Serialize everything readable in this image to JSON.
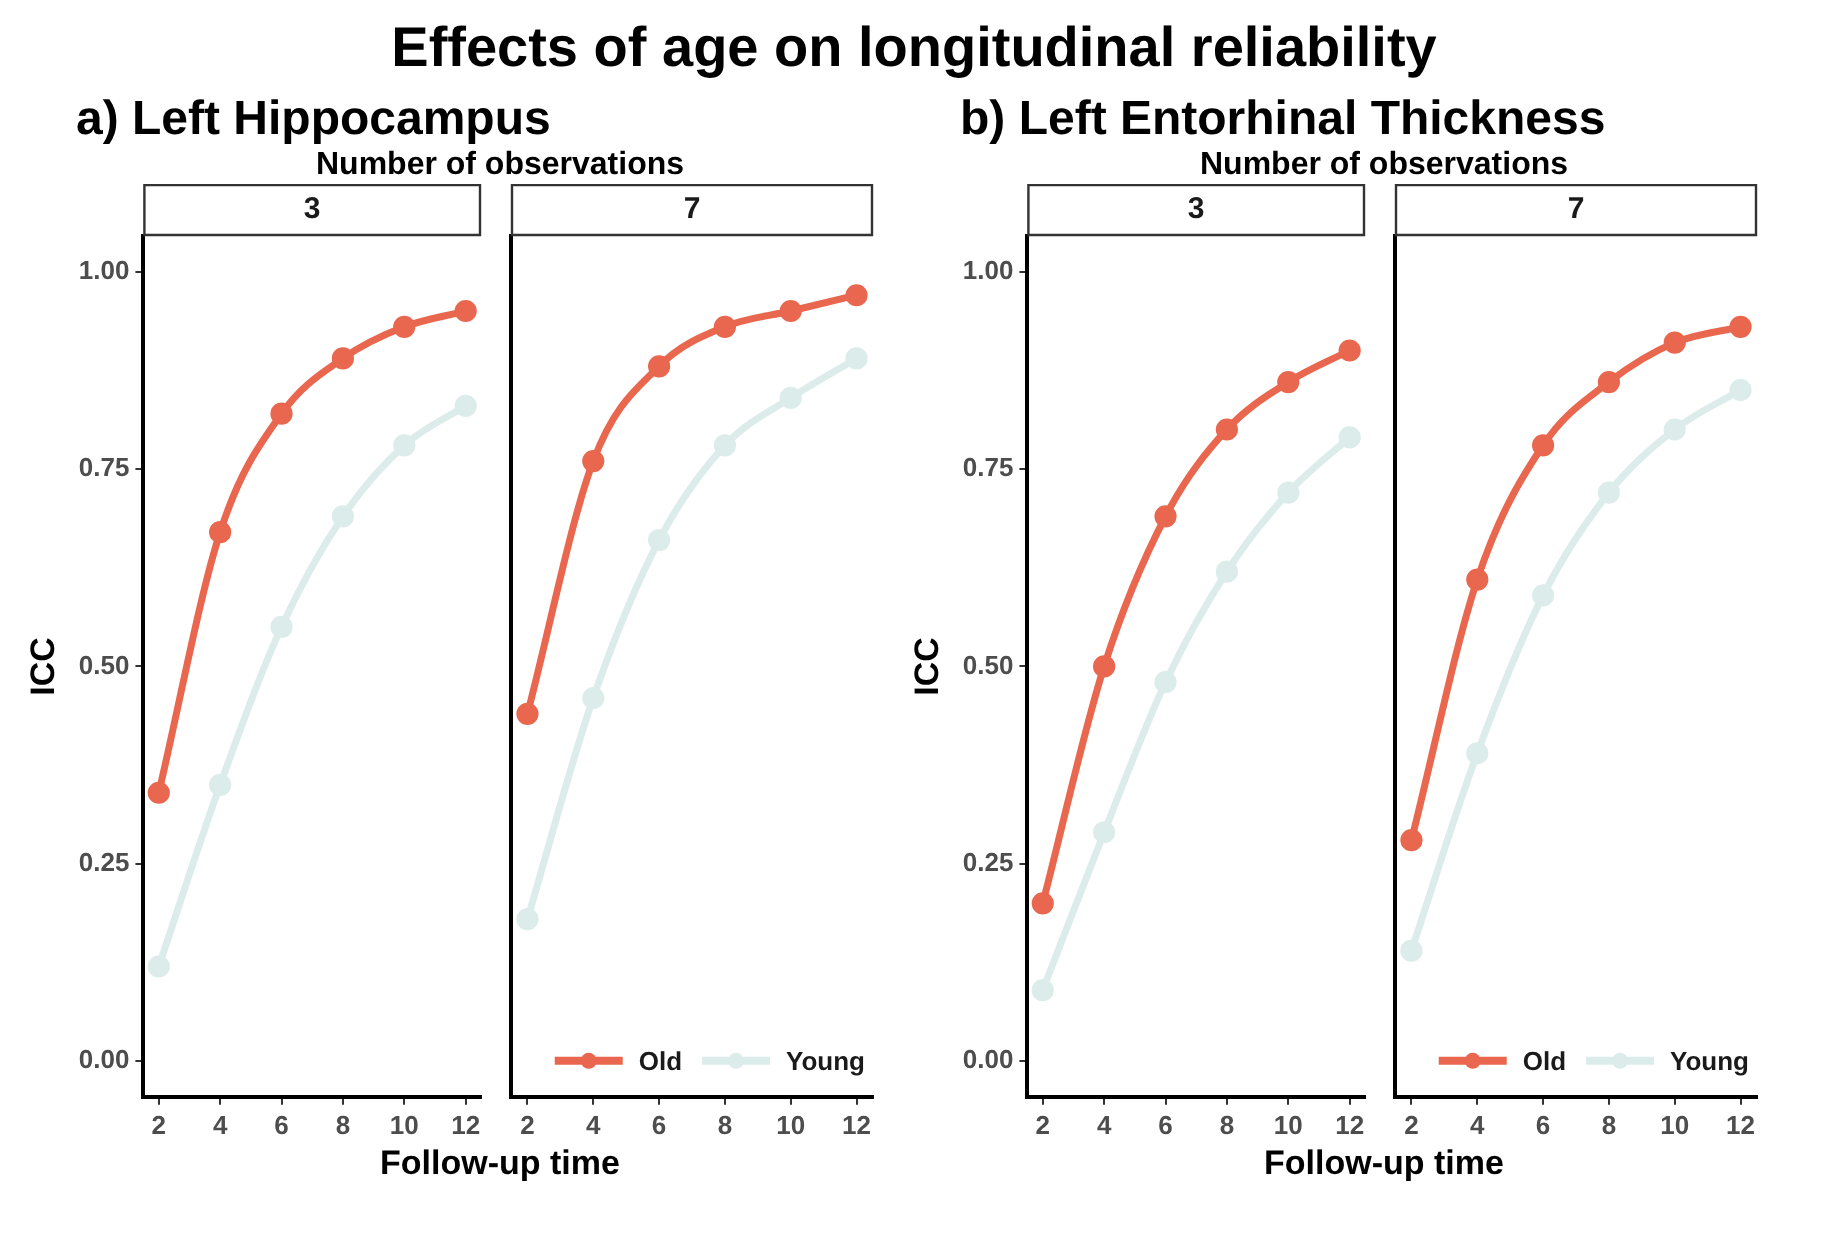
{
  "chart_data": [
    {
      "type": "line",
      "title": "3",
      "annotations": [
        "Effects of age on longitudinal reliability",
        "a) Left Hippocampus",
        "Number of observations"
      ],
      "xlabel": "Follow-up time",
      "ylabel": "ICC",
      "x": [
        2,
        4,
        6,
        8,
        10,
        12
      ],
      "xlim": [
        1.5,
        12.5
      ],
      "xticks": [
        2,
        4,
        6,
        8,
        10,
        12
      ],
      "ylim": [
        -0.045,
        1.045
      ],
      "yticks": [
        {
          "value": 0,
          "label": "0.00"
        },
        {
          "value": 0.25,
          "label": "0.25"
        },
        {
          "value": 0.5,
          "label": "0.50"
        },
        {
          "value": 0.75,
          "label": "0.75"
        },
        {
          "value": 1,
          "label": "1.00"
        }
      ],
      "grid": false,
      "marker": "circle",
      "line_style": "solid",
      "series": [
        {
          "color": "#e8674e",
          "values": [
            0.34,
            0.67,
            0.82,
            0.89,
            0.93,
            0.95
          ]
        },
        {
          "color": "#dcecea",
          "values": [
            0.12,
            0.35,
            0.55,
            0.69,
            0.78,
            0.83
          ]
        }
      ]
    },
    {
      "type": "line",
      "title": "7",
      "x": [
        2,
        4,
        6,
        8,
        10,
        12
      ],
      "xlim": [
        1.5,
        12.5
      ],
      "xticks": [
        2,
        4,
        6,
        8,
        10,
        12
      ],
      "ylim": [
        -0.045,
        1.045
      ],
      "grid": false,
      "marker": "circle",
      "line_style": "solid",
      "tick_labels": "x",
      "legend": "bottom right",
      "series": [
        {
          "name": "Old",
          "color": "#e8674e",
          "values": [
            0.44,
            0.76,
            0.88,
            0.93,
            0.95,
            0.97
          ]
        },
        {
          "name": "Young",
          "color": "#dcecea",
          "values": [
            0.18,
            0.46,
            0.66,
            0.78,
            0.84,
            0.89
          ]
        }
      ]
    },
    {
      "type": "line",
      "title": "3",
      "annotations": [
        "b) Left Entorhinal Thickness",
        "Number of observations"
      ],
      "xlabel": "Follow-up time",
      "ylabel": "ICC",
      "x": [
        2,
        4,
        6,
        8,
        10,
        12
      ],
      "xlim": [
        1.5,
        12.5
      ],
      "xticks": [
        2,
        4,
        6,
        8,
        10,
        12
      ],
      "ylim": [
        -0.045,
        1.045
      ],
      "yticks": [
        {
          "value": 0,
          "label": "0.00"
        },
        {
          "value": 0.25,
          "label": "0.25"
        },
        {
          "value": 0.5,
          "label": "0.50"
        },
        {
          "value": 0.75,
          "label": "0.75"
        },
        {
          "value": 1,
          "label": "1.00"
        }
      ],
      "grid": false,
      "marker": "circle",
      "line_style": "solid",
      "series": [
        {
          "color": "#e8674e",
          "values": [
            0.2,
            0.5,
            0.69,
            0.8,
            0.86,
            0.9
          ]
        },
        {
          "color": "#dcecea",
          "values": [
            0.09,
            0.29,
            0.48,
            0.62,
            0.72,
            0.79
          ]
        }
      ]
    },
    {
      "type": "line",
      "title": "7",
      "x": [
        2,
        4,
        6,
        8,
        10,
        12
      ],
      "xlim": [
        1.5,
        12.5
      ],
      "xticks": [
        2,
        4,
        6,
        8,
        10,
        12
      ],
      "ylim": [
        -0.045,
        1.045
      ],
      "grid": false,
      "marker": "circle",
      "line_style": "solid",
      "tick_labels": "x",
      "legend": "bottom right",
      "series": [
        {
          "name": "Old",
          "color": "#e8674e",
          "values": [
            0.28,
            0.61,
            0.78,
            0.86,
            0.91,
            0.93
          ]
        },
        {
          "name": "Young",
          "color": "#dcecea",
          "values": [
            0.14,
            0.39,
            0.59,
            0.72,
            0.8,
            0.85
          ]
        }
      ]
    }
  ]
}
